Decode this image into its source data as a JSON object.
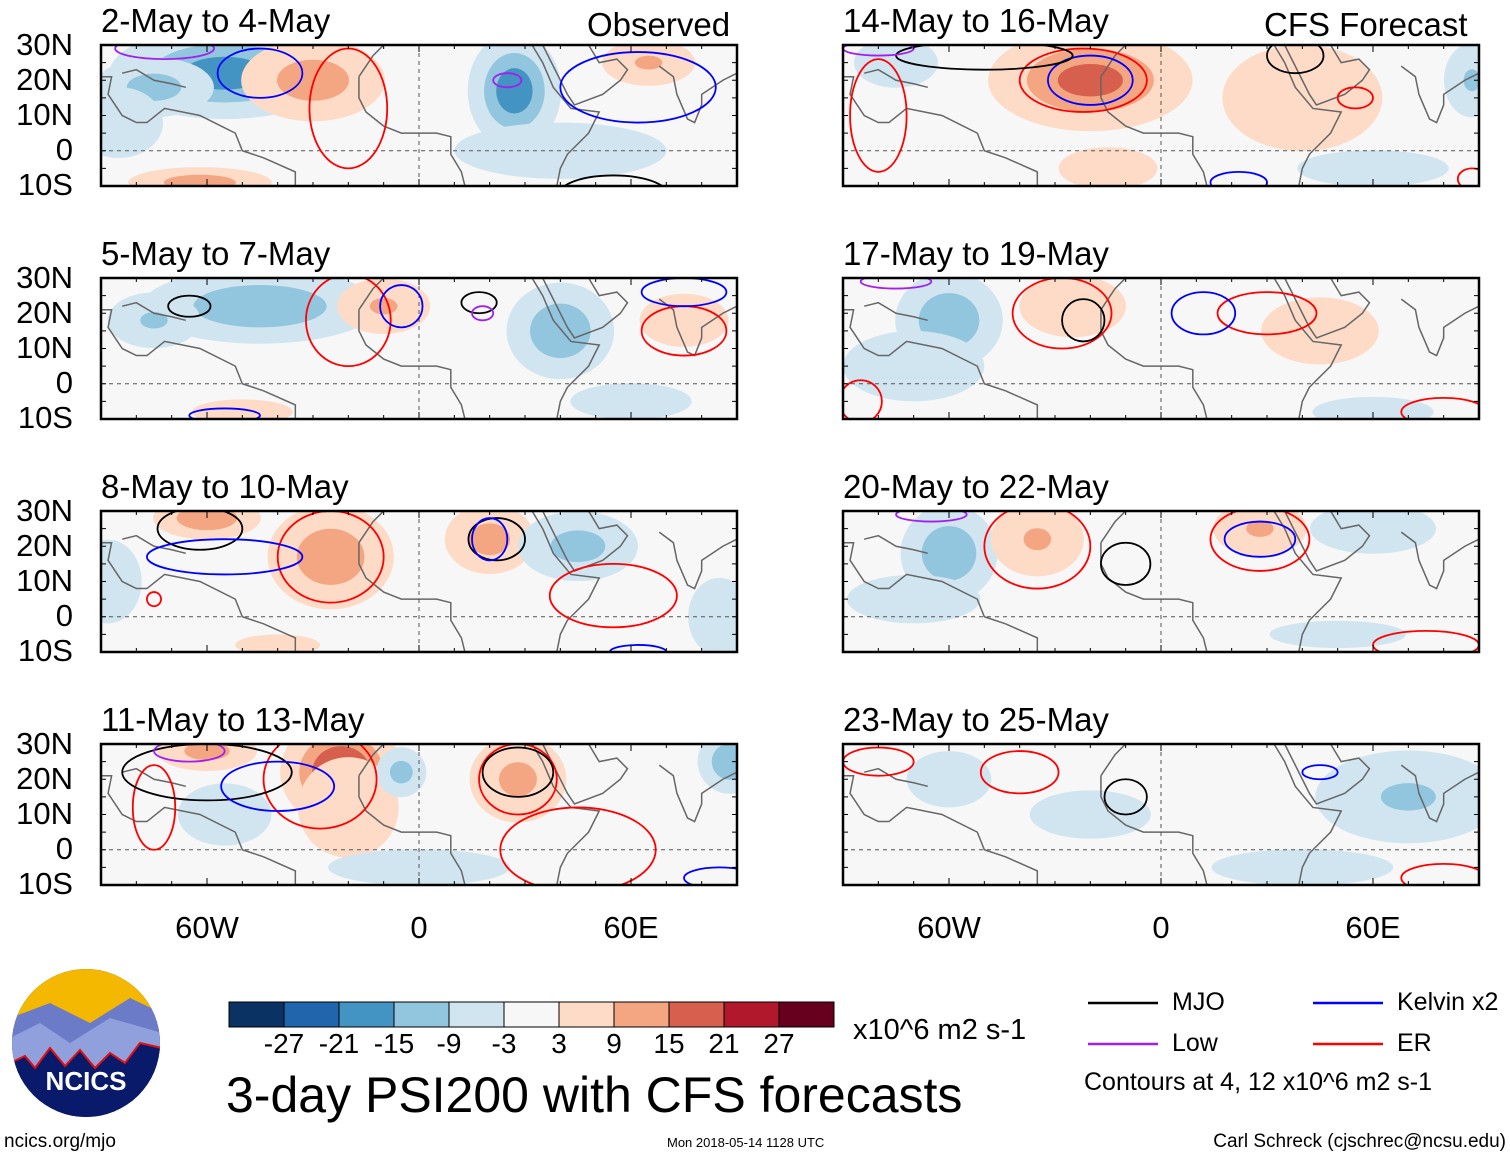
{
  "figure_title": "3-day PSI200 with CFS forecasts",
  "observed_label": "Observed",
  "forecast_label": "CFS Forecast",
  "lat_ticks": [
    "30N",
    "20N",
    "10N",
    "0",
    "10S"
  ],
  "lon_ticks": [
    "60W",
    "0",
    "60E"
  ],
  "colorbar": {
    "labels": [
      "-27",
      "-21",
      "-15",
      "-9",
      "-3",
      "3",
      "9",
      "15",
      "21",
      "27"
    ],
    "colors": [
      "#0a3263",
      "#2166ac",
      "#4393c3",
      "#92c5de",
      "#d1e5f0",
      "#f7f7f7",
      "#fddbc7",
      "#f4a582",
      "#d6604d",
      "#b2182b",
      "#67001f"
    ],
    "units": "x10^6 m2 s-1"
  },
  "legend": {
    "items": [
      {
        "label": "MJO",
        "color": "#000000"
      },
      {
        "label": "Kelvin x2",
        "color": "#0000ff"
      },
      {
        "label": "Low",
        "color": "#a020f0"
      },
      {
        "label": "ER",
        "color": "#ff0000"
      }
    ],
    "note": "Contours at 4, 12 x10^6 m2 s-1"
  },
  "logo_text": "NCICS",
  "footer": {
    "left": "ncics.org/mjo",
    "center": "Mon 2018-05-14 1128 UTC",
    "right": "Carl Schreck (cjschrec@ncsu.edu)"
  },
  "panels": [
    {
      "title": "2-May to 4-May",
      "col": 0,
      "row": 0,
      "blobs": [
        [
          -55,
          22,
          20,
          8,
          -19
        ],
        [
          -75,
          18,
          12,
          6,
          -12
        ],
        [
          27,
          17,
          8,
          10,
          -20
        ],
        [
          -85,
          8,
          10,
          8,
          -9
        ],
        [
          -30,
          20,
          14,
          8,
          13
        ],
        [
          65,
          25,
          10,
          5,
          10
        ],
        [
          -62,
          -9,
          14,
          3,
          13
        ],
        [
          40,
          0,
          30,
          8,
          -6
        ]
      ],
      "contours": [
        [
          "ER",
          -20,
          12,
          11,
          17
        ],
        [
          "Kelvin",
          -45,
          22,
          12,
          7
        ],
        [
          "Kelvin",
          62,
          18,
          22,
          10
        ],
        [
          "Low",
          -72,
          29,
          14,
          3
        ],
        [
          "Low",
          25,
          20,
          4,
          2
        ],
        [
          "MJO",
          55,
          -12,
          15,
          5
        ]
      ]
    },
    {
      "title": "5-May to 7-May",
      "col": 0,
      "row": 1,
      "blobs": [
        [
          -45,
          22,
          22,
          7,
          -15
        ],
        [
          -75,
          18,
          10,
          6,
          -10
        ],
        [
          40,
          15,
          10,
          9,
          -15
        ],
        [
          -10,
          22,
          10,
          6,
          10
        ],
        [
          75,
          18,
          10,
          6,
          9
        ],
        [
          -50,
          -8,
          12,
          3,
          8
        ],
        [
          60,
          -5,
          20,
          6,
          -5
        ]
      ],
      "contours": [
        [
          "ER",
          -20,
          18,
          12,
          13
        ],
        [
          "ER",
          75,
          15,
          12,
          7
        ],
        [
          "MJO",
          -65,
          22,
          6,
          3
        ],
        [
          "MJO",
          17,
          23,
          5,
          3
        ],
        [
          "Low",
          18,
          20,
          3,
          2
        ],
        [
          "Kelvin",
          -5,
          22,
          6,
          6
        ],
        [
          "Kelvin",
          75,
          26,
          12,
          4
        ],
        [
          "Kelvin",
          -55,
          -9,
          10,
          2
        ]
      ]
    },
    {
      "title": "8-May to 10-May",
      "col": 0,
      "row": 2,
      "blobs": [
        [
          -25,
          17,
          12,
          10,
          14
        ],
        [
          -60,
          28,
          10,
          4,
          15
        ],
        [
          20,
          22,
          9,
          7,
          12
        ],
        [
          45,
          20,
          12,
          7,
          -12
        ],
        [
          -88,
          10,
          8,
          10,
          -8
        ],
        [
          -40,
          -8,
          12,
          3,
          6
        ],
        [
          85,
          0,
          8,
          10,
          -7
        ]
      ],
      "contours": [
        [
          "ER",
          -25,
          17,
          15,
          13
        ],
        [
          "ER",
          55,
          6,
          18,
          9
        ],
        [
          "MJO",
          -62,
          25,
          12,
          6
        ],
        [
          "MJO",
          22,
          22,
          8,
          6
        ],
        [
          "Kelvin",
          -55,
          17,
          22,
          5
        ],
        [
          "Kelvin",
          20,
          22,
          5,
          6
        ],
        [
          "ER",
          -75,
          5,
          2,
          2
        ],
        [
          "Kelvin",
          62,
          -10,
          8,
          2
        ]
      ]
    },
    {
      "title": "11-May to 13-May",
      "col": 0,
      "row": 3,
      "blobs": [
        [
          -22,
          22,
          10,
          9,
          24
        ],
        [
          -60,
          28,
          10,
          4,
          12
        ],
        [
          28,
          20,
          10,
          9,
          11
        ],
        [
          -20,
          12,
          12,
          12,
          8
        ],
        [
          -5,
          22,
          5,
          5,
          -12
        ],
        [
          88,
          25,
          6,
          6,
          -15
        ],
        [
          0,
          -5,
          30,
          6,
          -5
        ],
        [
          -55,
          10,
          12,
          8,
          -7
        ]
      ],
      "contours": [
        [
          "ER",
          -28,
          20,
          16,
          14
        ],
        [
          "ER",
          28,
          20,
          11,
          10
        ],
        [
          "ER",
          45,
          0,
          22,
          12
        ],
        [
          "ER",
          -75,
          12,
          6,
          12
        ],
        [
          "MJO",
          -60,
          22,
          24,
          8
        ],
        [
          "MJO",
          28,
          22,
          10,
          7
        ],
        [
          "Kelvin",
          -40,
          18,
          16,
          7
        ],
        [
          "Kelvin",
          85,
          -8,
          10,
          3
        ],
        [
          "Low",
          -65,
          28,
          10,
          3
        ]
      ]
    },
    {
      "title": "14-May to 16-May",
      "col": 1,
      "row": 0,
      "blobs": [
        [
          -20,
          20,
          18,
          9,
          18
        ],
        [
          40,
          15,
          18,
          12,
          9
        ],
        [
          -15,
          -5,
          14,
          6,
          6
        ],
        [
          -75,
          25,
          10,
          6,
          -8
        ],
        [
          88,
          20,
          6,
          8,
          -10
        ],
        [
          60,
          -5,
          25,
          6,
          -5
        ]
      ],
      "contours": [
        [
          "ER",
          -22,
          20,
          18,
          9
        ],
        [
          "Kelvin",
          -20,
          20,
          12,
          7
        ],
        [
          "ER",
          -80,
          10,
          8,
          16
        ],
        [
          "ER",
          55,
          15,
          5,
          3
        ],
        [
          "MJO",
          -50,
          27,
          25,
          4
        ],
        [
          "MJO",
          38,
          27,
          8,
          5
        ],
        [
          "Low",
          -80,
          29,
          10,
          2
        ],
        [
          "Kelvin",
          22,
          -9,
          8,
          3
        ],
        [
          "ER",
          88,
          -8,
          4,
          3
        ]
      ]
    },
    {
      "title": "17-May to 19-May",
      "col": 1,
      "row": 1,
      "blobs": [
        [
          -60,
          18,
          10,
          9,
          -15
        ],
        [
          -25,
          22,
          12,
          7,
          9
        ],
        [
          45,
          15,
          14,
          8,
          8
        ],
        [
          -70,
          5,
          20,
          10,
          -6
        ],
        [
          60,
          -8,
          20,
          5,
          -5
        ]
      ],
      "contours": [
        [
          "ER",
          -28,
          20,
          14,
          10
        ],
        [
          "ER",
          30,
          20,
          14,
          6
        ],
        [
          "MJO",
          -22,
          18,
          6,
          6
        ],
        [
          "Kelvin",
          12,
          20,
          9,
          6
        ],
        [
          "ER",
          80,
          -8,
          12,
          4
        ],
        [
          "ER",
          -85,
          -5,
          6,
          6
        ],
        [
          "Low",
          -75,
          29,
          10,
          2
        ]
      ]
    },
    {
      "title": "20-May to 22-May",
      "col": 1,
      "row": 2,
      "blobs": [
        [
          -60,
          18,
          9,
          9,
          -15
        ],
        [
          -35,
          22,
          10,
          8,
          10
        ],
        [
          28,
          25,
          10,
          6,
          10
        ],
        [
          60,
          25,
          15,
          6,
          -8
        ],
        [
          -70,
          5,
          22,
          8,
          -5
        ],
        [
          50,
          -5,
          30,
          6,
          -4
        ]
      ],
      "contours": [
        [
          "ER",
          -35,
          20,
          15,
          12
        ],
        [
          "ER",
          28,
          22,
          14,
          9
        ],
        [
          "MJO",
          -10,
          15,
          7,
          6
        ],
        [
          "Kelvin",
          28,
          22,
          10,
          5
        ],
        [
          "ER",
          75,
          -8,
          15,
          4
        ],
        [
          "Low",
          -65,
          29,
          10,
          2
        ]
      ]
    },
    {
      "title": "23-May to 25-May",
      "col": 1,
      "row": 3,
      "blobs": [
        [
          70,
          15,
          20,
          10,
          -10
        ],
        [
          -60,
          20,
          12,
          8,
          -6
        ],
        [
          -20,
          10,
          20,
          8,
          -5
        ],
        [
          40,
          -5,
          30,
          6,
          -5
        ]
      ],
      "contours": [
        [
          "ER",
          -40,
          22,
          11,
          6
        ],
        [
          "ER",
          -80,
          25,
          10,
          4
        ],
        [
          "MJO",
          -10,
          15,
          6,
          5
        ],
        [
          "Kelvin",
          45,
          22,
          5,
          2
        ],
        [
          "ER",
          80,
          -8,
          12,
          4
        ]
      ]
    }
  ]
}
